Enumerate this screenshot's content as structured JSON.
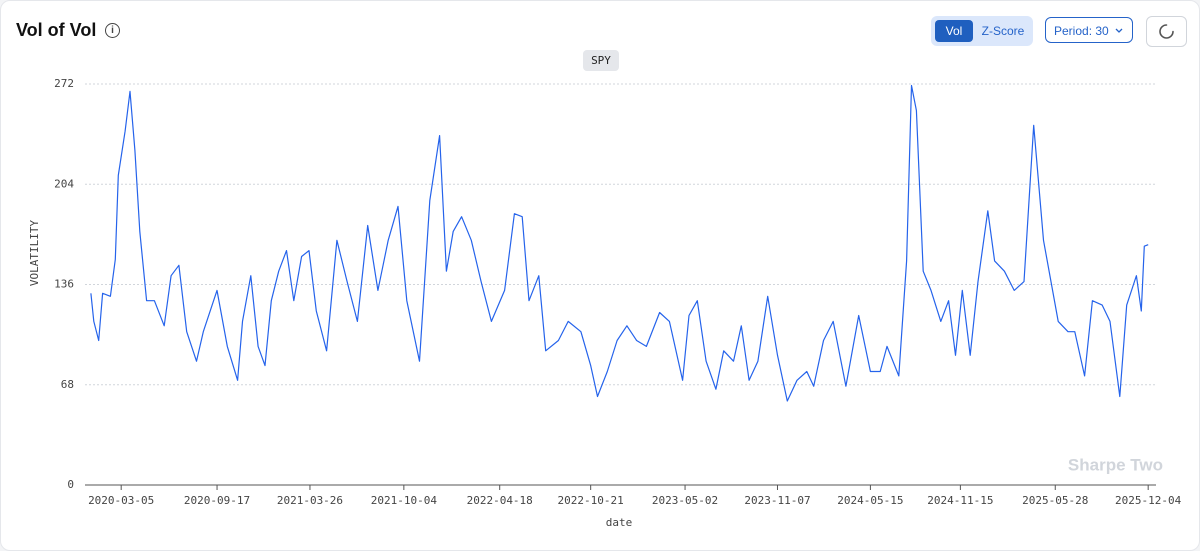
{
  "controls": {
    "modes": [
      "Vol",
      "Z-Score"
    ],
    "period": "Period: 30"
  },
  "chart_data": {
    "type": "line",
    "title": "Vol of Vol",
    "x_label": "date",
    "y_label": "VOLATILITY",
    "annotation": "Sharpe Two",
    "x": [
      "2020-01-03",
      "2020-01-09",
      "2020-01-19",
      "2020-01-27",
      "2020-02-12",
      "2020-02-22",
      "2020-02-28",
      "2020-03-13",
      "2020-03-23",
      "2020-04-02",
      "2020-04-12",
      "2020-04-26",
      "2020-05-12",
      "2020-06-01",
      "2020-06-15",
      "2020-07-01",
      "2020-07-17",
      "2020-08-06",
      "2020-08-20",
      "2020-09-17",
      "2020-10-08",
      "2020-10-29",
      "2020-11-08",
      "2020-11-25",
      "2020-12-10",
      "2020-12-24",
      "2021-01-06",
      "2021-01-21",
      "2021-02-06",
      "2021-02-21",
      "2021-03-09",
      "2021-03-24",
      "2021-04-08",
      "2021-04-29",
      "2021-05-20",
      "2021-06-10",
      "2021-07-01",
      "2021-07-22",
      "2021-08-12",
      "2021-09-02",
      "2021-09-22",
      "2021-10-10",
      "2021-11-05",
      "2021-11-26",
      "2021-12-16",
      "2021-12-30",
      "2022-01-13",
      "2022-01-30",
      "2022-02-19",
      "2022-03-11",
      "2022-04-01",
      "2022-04-28",
      "2022-05-18",
      "2022-06-03",
      "2022-06-17",
      "2022-07-07",
      "2022-07-21",
      "2022-08-16",
      "2022-09-05",
      "2022-10-01",
      "2022-10-21",
      "2022-11-04",
      "2022-11-24",
      "2022-12-14",
      "2023-01-03",
      "2023-01-23",
      "2023-02-12",
      "2023-03-11",
      "2023-03-31",
      "2023-04-27",
      "2023-05-10",
      "2023-05-27",
      "2023-06-14",
      "2023-07-04",
      "2023-07-20",
      "2023-08-09",
      "2023-08-25",
      "2023-09-10",
      "2023-09-28",
      "2023-10-18",
      "2023-11-07",
      "2023-11-27",
      "2023-12-17",
      "2024-01-06",
      "2024-01-20",
      "2024-02-09",
      "2024-02-29",
      "2024-03-26",
      "2024-04-21",
      "2024-05-15",
      "2024-06-04",
      "2024-06-18",
      "2024-07-12",
      "2024-07-28",
      "2024-08-07",
      "2024-08-17",
      "2024-08-31",
      "2024-09-16",
      "2024-10-06",
      "2024-10-22",
      "2024-11-05",
      "2024-11-19",
      "2024-12-05",
      "2024-12-21",
      "2025-01-10",
      "2025-01-24",
      "2025-02-13",
      "2025-03-05",
      "2025-03-25",
      "2025-04-14",
      "2025-05-04",
      "2025-06-03",
      "2025-06-23",
      "2025-07-07",
      "2025-07-27",
      "2025-08-12",
      "2025-09-01",
      "2025-09-17",
      "2025-10-07",
      "2025-10-21",
      "2025-11-10",
      "2025-11-20",
      "2025-11-26",
      "2025-12-04"
    ],
    "series": [
      {
        "name": "SPY",
        "color": "#2563eb",
        "values": [
          130,
          111,
          98,
          130,
          128,
          153,
          210,
          240,
          267,
          227,
          172,
          125,
          125,
          108,
          142,
          149,
          104,
          84,
          104,
          132,
          94,
          71,
          111,
          142,
          94,
          81,
          125,
          145,
          159,
          125,
          155,
          159,
          118,
          91,
          166,
          138,
          111,
          176,
          132,
          166,
          189,
          125,
          84,
          193,
          237,
          145,
          172,
          182,
          166,
          138,
          111,
          132,
          184,
          182,
          125,
          142,
          91,
          98,
          111,
          104,
          81,
          60,
          77,
          98,
          108,
          98,
          94,
          117,
          111,
          71,
          115,
          125,
          84,
          65,
          91,
          84,
          108,
          71,
          84,
          128,
          88,
          57,
          71,
          77,
          67,
          98,
          111,
          67,
          115,
          77,
          77,
          94,
          74,
          152,
          271,
          254,
          145,
          132,
          111,
          125,
          88,
          132,
          88,
          138,
          186,
          152,
          145,
          132,
          138,
          244,
          166,
          111,
          104,
          104,
          74,
          125,
          122,
          111,
          60,
          122,
          142,
          118,
          162,
          163
        ]
      }
    ],
    "xlim": [
      "2019-12-22",
      "2025-12-20"
    ],
    "xticks": [
      "2020-03-05",
      "2020-09-17",
      "2021-03-26",
      "2021-10-04",
      "2022-04-18",
      "2022-10-21",
      "2023-05-02",
      "2023-11-07",
      "2024-05-15",
      "2024-11-15",
      "2025-05-28",
      "2025-12-04"
    ],
    "ylim": [
      0,
      272
    ],
    "yticks": [
      0,
      68,
      136,
      204,
      272
    ],
    "grid": true
  }
}
